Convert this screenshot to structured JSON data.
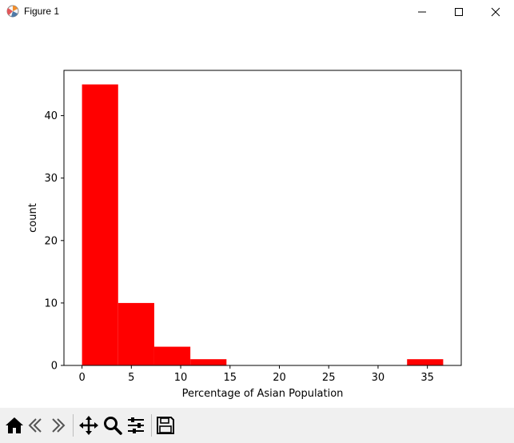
{
  "window": {
    "title": "Figure 1",
    "icons": [
      "matplotlib-icon",
      "minimize-icon",
      "maximize-icon",
      "close-icon"
    ]
  },
  "toolbar": {
    "tools": [
      "home-icon",
      "back-icon",
      "forward-icon",
      "pan-icon",
      "zoom-icon",
      "configure-subplots-icon",
      "save-icon"
    ]
  },
  "chart_data": {
    "type": "bar",
    "subtype": "histogram",
    "bins": [
      {
        "start": 0.0,
        "end": 3.66,
        "count": 45
      },
      {
        "start": 3.66,
        "end": 7.32,
        "count": 10
      },
      {
        "start": 7.32,
        "end": 10.98,
        "count": 3
      },
      {
        "start": 10.98,
        "end": 14.64,
        "count": 1
      },
      {
        "start": 14.64,
        "end": 18.3,
        "count": 0
      },
      {
        "start": 18.3,
        "end": 21.96,
        "count": 0
      },
      {
        "start": 21.96,
        "end": 25.62,
        "count": 0
      },
      {
        "start": 25.62,
        "end": 29.28,
        "count": 0
      },
      {
        "start": 29.28,
        "end": 32.94,
        "count": 0
      },
      {
        "start": 32.94,
        "end": 36.6,
        "count": 1
      }
    ],
    "color": "#ff0000",
    "xlabel": "Percentage of Asian Population",
    "ylabel": "count",
    "xlim": [
      -1.83,
      38.43
    ],
    "ylim": [
      0,
      47.25
    ],
    "xticks": [
      0,
      5,
      10,
      15,
      20,
      25,
      30,
      35
    ],
    "yticks": [
      0,
      10,
      20,
      30,
      40
    ],
    "grid": false
  }
}
